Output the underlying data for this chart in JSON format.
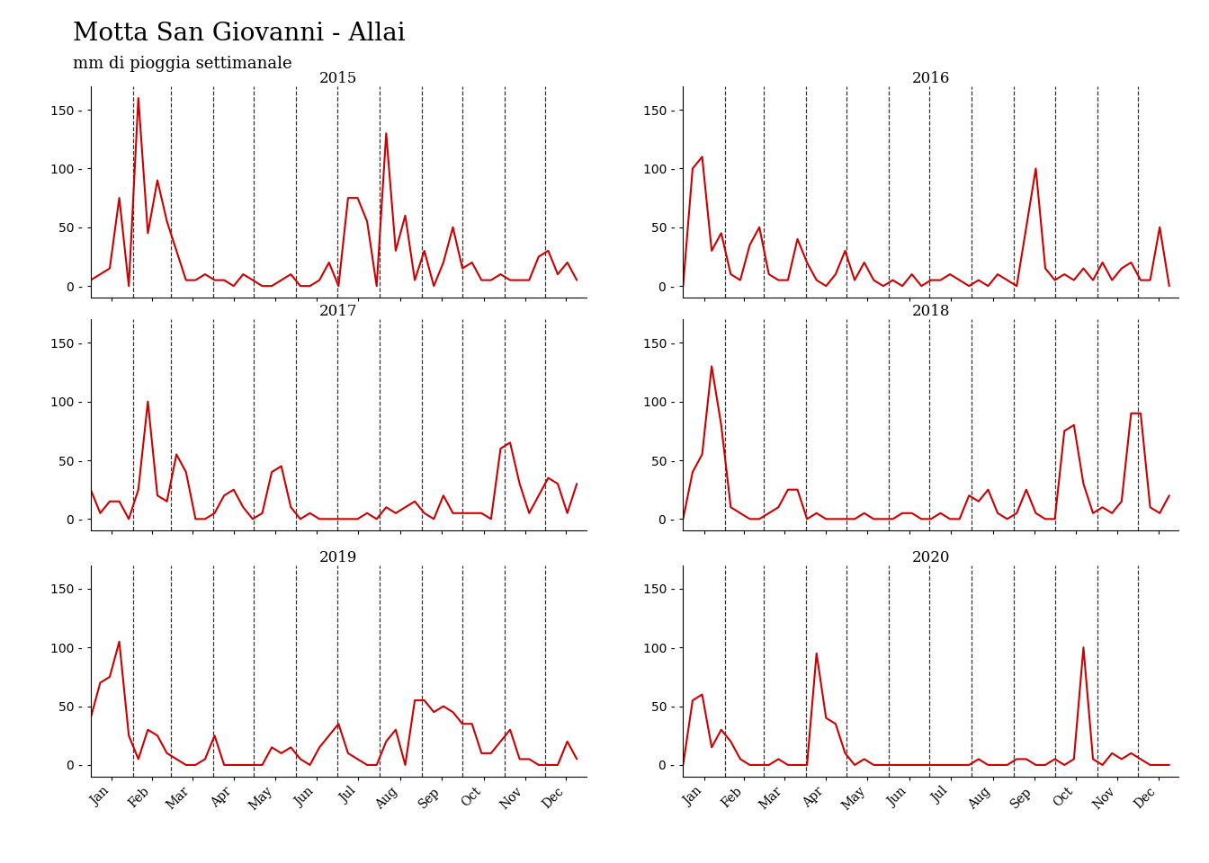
{
  "title": "Motta San Giovanni - Allai",
  "subtitle": "mm di pioggia settimanale",
  "line_color": "#cc0000",
  "background_color": "#ffffff",
  "ylim": [
    -10,
    170
  ],
  "yticks": [
    0,
    50,
    100,
    150
  ],
  "years": [
    2015,
    2016,
    2017,
    2018,
    2019,
    2020
  ],
  "months": [
    "Jan",
    "Feb",
    "Mar",
    "Apr",
    "May",
    "Jun",
    "Jul",
    "Aug",
    "Sep",
    "Oct",
    "Nov",
    "Dec"
  ],
  "data": {
    "2015": [
      5,
      10,
      15,
      75,
      0,
      160,
      45,
      90,
      55,
      30,
      5,
      5,
      10,
      5,
      5,
      0,
      10,
      5,
      0,
      0,
      5,
      10,
      0,
      0,
      5,
      20,
      0,
      75,
      75,
      55,
      0,
      130,
      30,
      60,
      5,
      30,
      0,
      20,
      50,
      15,
      20,
      5,
      5,
      10,
      5,
      5,
      5,
      25,
      30,
      10,
      20,
      5
    ],
    "2016": [
      0,
      100,
      110,
      30,
      45,
      10,
      5,
      35,
      50,
      10,
      5,
      5,
      40,
      20,
      5,
      0,
      10,
      30,
      5,
      20,
      5,
      0,
      5,
      0,
      10,
      0,
      5,
      5,
      10,
      5,
      0,
      5,
      0,
      10,
      5,
      0,
      50,
      100,
      15,
      5,
      10,
      5,
      15,
      5,
      20,
      5,
      15,
      20,
      5,
      5,
      50,
      0
    ],
    "2017": [
      25,
      5,
      15,
      15,
      0,
      25,
      100,
      20,
      15,
      55,
      40,
      0,
      0,
      5,
      20,
      25,
      10,
      0,
      5,
      40,
      45,
      10,
      0,
      5,
      0,
      0,
      0,
      0,
      0,
      5,
      0,
      10,
      5,
      10,
      15,
      5,
      0,
      20,
      5,
      5,
      5,
      5,
      0,
      60,
      65,
      30,
      5,
      20,
      35,
      30,
      5,
      30
    ],
    "2018": [
      0,
      40,
      55,
      130,
      80,
      10,
      5,
      0,
      0,
      5,
      10,
      25,
      25,
      0,
      5,
      0,
      0,
      0,
      0,
      5,
      0,
      0,
      0,
      5,
      5,
      0,
      0,
      5,
      0,
      0,
      20,
      15,
      25,
      5,
      0,
      5,
      25,
      5,
      0,
      0,
      75,
      80,
      30,
      5,
      10,
      5,
      15,
      90,
      90,
      10,
      5,
      20
    ],
    "2019": [
      40,
      70,
      75,
      105,
      25,
      5,
      30,
      25,
      10,
      5,
      0,
      0,
      5,
      25,
      0,
      0,
      0,
      0,
      0,
      15,
      10,
      15,
      5,
      0,
      15,
      25,
      35,
      10,
      5,
      0,
      0,
      20,
      30,
      0,
      55,
      55,
      45,
      50,
      45,
      35,
      35,
      10,
      10,
      20,
      30,
      5,
      5,
      0,
      0,
      0,
      20,
      5
    ],
    "2020": [
      0,
      55,
      60,
      15,
      30,
      20,
      5,
      0,
      0,
      0,
      5,
      0,
      0,
      0,
      95,
      40,
      35,
      10,
      0,
      5,
      0,
      0,
      0,
      0,
      0,
      0,
      0,
      0,
      0,
      0,
      0,
      5,
      0,
      0,
      0,
      5,
      5,
      0,
      0,
      5,
      0,
      5,
      100,
      5,
      0,
      10,
      5,
      10,
      5,
      0,
      0,
      0
    ]
  }
}
